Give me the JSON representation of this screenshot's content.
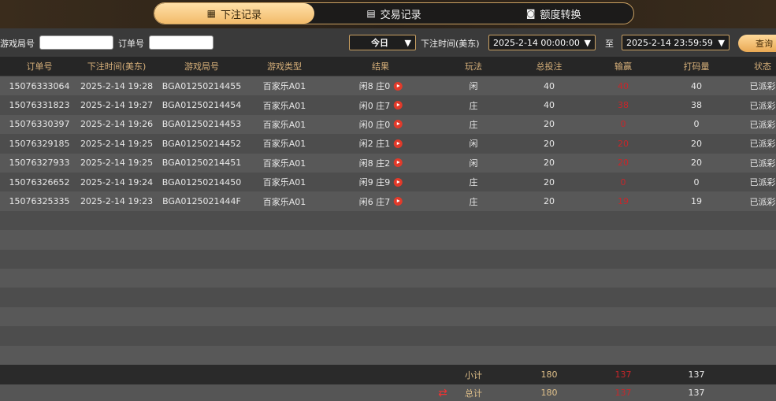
{
  "tabs": [
    {
      "label": "下注记录",
      "icon": "calendar-icon",
      "active": true
    },
    {
      "label": "交易记录",
      "icon": "clipboard-icon",
      "active": false
    },
    {
      "label": "额度转换",
      "icon": "coins-icon",
      "active": false
    }
  ],
  "filter": {
    "game_no_label": "游戏局号",
    "game_no_value": "",
    "order_label": "订单号",
    "order_value": "",
    "period": "今日",
    "time_label": "下注时间(美东)",
    "start": "2025-2-14 00:00:00",
    "to_label": "至",
    "end": "2025-2-14 23:59:59",
    "query": "查询"
  },
  "columns": [
    "订单号",
    "下注时间(美东)",
    "游戏局号",
    "游戏类型",
    "结果",
    "玩法",
    "总投注",
    "输赢",
    "打码量",
    "状态"
  ],
  "rows": [
    {
      "order": "15076333064",
      "time": "2025-2-14 19:28",
      "game_no": "BGA01250214455",
      "type": "百家乐A01",
      "result": "闲8 庄0",
      "play": "闲",
      "bet": "40",
      "winloss": "40",
      "valid": "40",
      "status": "已派彩"
    },
    {
      "order": "15076331823",
      "time": "2025-2-14 19:27",
      "game_no": "BGA01250214454",
      "type": "百家乐A01",
      "result": "闲0 庄7",
      "play": "庄",
      "bet": "40",
      "winloss": "38",
      "valid": "38",
      "status": "已派彩"
    },
    {
      "order": "15076330397",
      "time": "2025-2-14 19:26",
      "game_no": "BGA01250214453",
      "type": "百家乐A01",
      "result": "闲0 庄0",
      "play": "庄",
      "bet": "20",
      "winloss": "0",
      "valid": "0",
      "status": "已派彩"
    },
    {
      "order": "15076329185",
      "time": "2025-2-14 19:25",
      "game_no": "BGA01250214452",
      "type": "百家乐A01",
      "result": "闲2 庄1",
      "play": "闲",
      "bet": "20",
      "winloss": "20",
      "valid": "20",
      "status": "已派彩"
    },
    {
      "order": "15076327933",
      "time": "2025-2-14 19:25",
      "game_no": "BGA01250214451",
      "type": "百家乐A01",
      "result": "闲8 庄2",
      "play": "闲",
      "bet": "20",
      "winloss": "20",
      "valid": "20",
      "status": "已派彩"
    },
    {
      "order": "15076326652",
      "time": "2025-2-14 19:24",
      "game_no": "BGA01250214450",
      "type": "百家乐A01",
      "result": "闲9 庄9",
      "play": "庄",
      "bet": "20",
      "winloss": "0",
      "valid": "0",
      "status": "已派彩"
    },
    {
      "order": "15076325335",
      "time": "2025-2-14 19:23",
      "game_no": "BGA0125021444F",
      "type": "百家乐A01",
      "result": "闲6 庄7",
      "play": "庄",
      "bet": "20",
      "winloss": "19",
      "valid": "19",
      "status": "已派彩"
    }
  ],
  "subtotal": {
    "label": "小计",
    "bet": "180",
    "winloss": "137",
    "valid": "137"
  },
  "total": {
    "label": "总计",
    "bet": "180",
    "winloss": "137",
    "valid": "137",
    "icon": "refresh-icon"
  },
  "colors": {
    "accent": "#c9a062",
    "loss_win": "#c8262a"
  }
}
